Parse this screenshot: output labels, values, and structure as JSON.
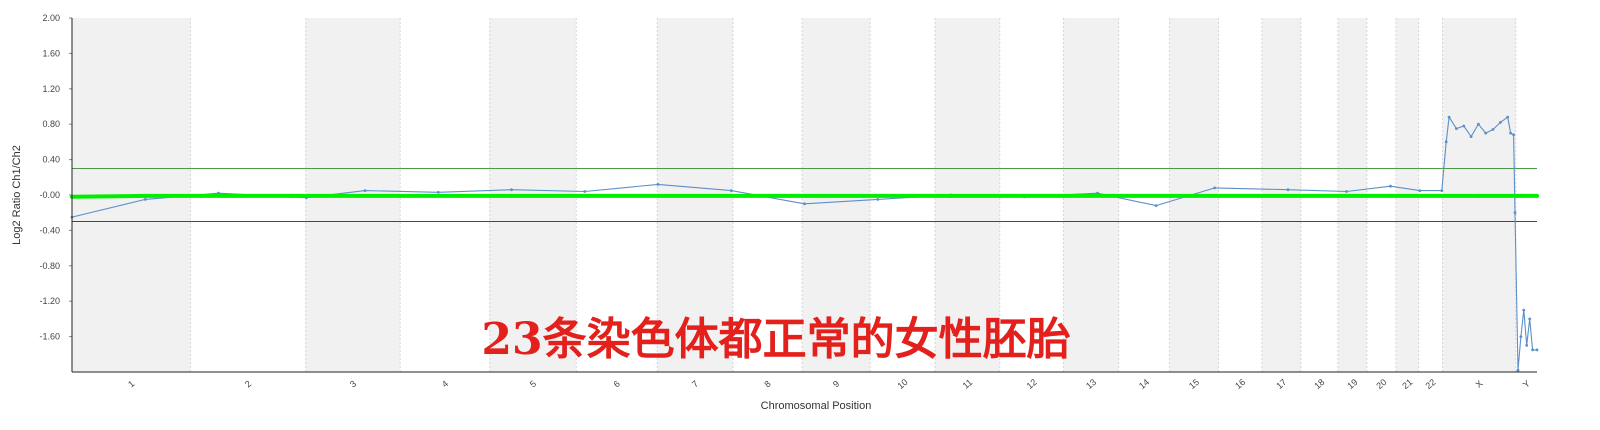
{
  "chart_data": {
    "type": "line",
    "title": "",
    "xlabel": "Chromosomal Position",
    "ylabel": "Log2 Ratio Ch1/Ch2",
    "ylim": [
      -2.0,
      2.0
    ],
    "yticks": [
      {
        "value": 2.0,
        "label": "2.00"
      },
      {
        "value": 1.6,
        "label": "1.60"
      },
      {
        "value": 1.2,
        "label": "1.20"
      },
      {
        "value": 0.8,
        "label": "0.80"
      },
      {
        "value": 0.4,
        "label": "0.40"
      },
      {
        "value": 0.0,
        "label": "-0.00"
      },
      {
        "value": -0.4,
        "label": "-0.40"
      },
      {
        "value": -0.8,
        "label": "-0.80"
      },
      {
        "value": -1.2,
        "label": "-1.20"
      },
      {
        "value": -1.6,
        "label": "-1.60"
      }
    ],
    "thresholds": [
      {
        "name": "upper",
        "value": 0.3,
        "color": "#4a9a4a"
      },
      {
        "name": "lower",
        "value": -0.3,
        "color": "#8b2a2a"
      }
    ],
    "chromosomes": [
      {
        "label": "1",
        "span": [
          0.0,
          0.0808
        ],
        "shaded": true
      },
      {
        "label": "2",
        "span": [
          0.0808,
          0.1596
        ],
        "shaded": false
      },
      {
        "label": "3",
        "span": [
          0.1596,
          0.224
        ],
        "shaded": true
      },
      {
        "label": "4",
        "span": [
          0.224,
          0.2852
        ],
        "shaded": false
      },
      {
        "label": "5",
        "span": [
          0.2852,
          0.3442
        ],
        "shaded": true
      },
      {
        "label": "6",
        "span": [
          0.3442,
          0.3995
        ],
        "shaded": false
      },
      {
        "label": "7",
        "span": [
          0.3995,
          0.4512
        ],
        "shaded": true
      },
      {
        "label": "8",
        "span": [
          0.4512,
          0.4983
        ],
        "shaded": false
      },
      {
        "label": "9",
        "span": [
          0.4983,
          0.5448
        ],
        "shaded": true
      },
      {
        "label": "10",
        "span": [
          0.5448,
          0.5891
        ],
        "shaded": false
      },
      {
        "label": "11",
        "span": [
          0.5891,
          0.6333
        ],
        "shaded": true
      },
      {
        "label": "12",
        "span": [
          0.6333,
          0.6768
        ],
        "shaded": false
      },
      {
        "label": "13",
        "span": [
          0.6768,
          0.7144
        ],
        "shaded": true
      },
      {
        "label": "14",
        "span": [
          0.7144,
          0.7492
        ],
        "shaded": false
      },
      {
        "label": "15",
        "span": [
          0.7492,
          0.7826
        ],
        "shaded": true
      },
      {
        "label": "16",
        "span": [
          0.7826,
          0.8122
        ],
        "shaded": false
      },
      {
        "label": "17",
        "span": [
          0.8122,
          0.8388
        ],
        "shaded": true
      },
      {
        "label": "18",
        "span": [
          0.8388,
          0.8641
        ],
        "shaded": false
      },
      {
        "label": "19",
        "span": [
          0.8641,
          0.8839
        ],
        "shaded": true
      },
      {
        "label": "20",
        "span": [
          0.8839,
          0.9037
        ],
        "shaded": false
      },
      {
        "label": "21",
        "span": [
          0.9037,
          0.9192
        ],
        "shaded": true
      },
      {
        "label": "22",
        "span": [
          0.9192,
          0.9355
        ],
        "shaded": false
      },
      {
        "label": "X",
        "span": [
          0.9355,
          0.9855
        ],
        "shaded": true
      },
      {
        "label": "Y",
        "span": [
          0.9855,
          1.0
        ],
        "shaded": false
      }
    ],
    "series": [
      {
        "color": "#00ee00",
        "values": [
          [
            0.0,
            -0.02
          ],
          [
            0.05,
            -0.01
          ],
          [
            0.15,
            -0.01
          ],
          [
            0.3,
            -0.01
          ],
          [
            0.45,
            -0.01
          ],
          [
            0.6,
            -0.01
          ],
          [
            0.75,
            -0.01
          ],
          [
            0.9,
            -0.01
          ],
          [
            0.96,
            -0.01
          ],
          [
            0.99,
            -0.01
          ],
          [
            1.0,
            -0.01
          ]
        ]
      },
      {
        "color": "#5b8fc9",
        "values": [
          [
            0.0,
            -0.25
          ],
          [
            0.05,
            -0.05
          ],
          [
            0.1,
            0.02
          ],
          [
            0.16,
            -0.03
          ],
          [
            0.2,
            0.05
          ],
          [
            0.25,
            0.03
          ],
          [
            0.3,
            0.06
          ],
          [
            0.35,
            0.04
          ],
          [
            0.4,
            0.12
          ],
          [
            0.45,
            0.05
          ],
          [
            0.5,
            -0.1
          ],
          [
            0.55,
            -0.05
          ],
          [
            0.6,
            0.0
          ],
          [
            0.65,
            -0.02
          ],
          [
            0.7,
            0.02
          ],
          [
            0.74,
            -0.12
          ],
          [
            0.78,
            0.08
          ],
          [
            0.83,
            0.06
          ],
          [
            0.87,
            0.04
          ],
          [
            0.9,
            0.1
          ],
          [
            0.92,
            0.05
          ],
          [
            0.935,
            0.05
          ],
          [
            0.938,
            0.6
          ],
          [
            0.94,
            0.88
          ],
          [
            0.945,
            0.75
          ],
          [
            0.95,
            0.78
          ],
          [
            0.955,
            0.66
          ],
          [
            0.96,
            0.8
          ],
          [
            0.965,
            0.7
          ],
          [
            0.97,
            0.74
          ],
          [
            0.975,
            0.82
          ],
          [
            0.98,
            0.88
          ],
          [
            0.982,
            0.7
          ],
          [
            0.984,
            0.68
          ],
          [
            0.985,
            -0.2
          ],
          [
            0.987,
            -1.98
          ],
          [
            0.989,
            -1.6
          ],
          [
            0.991,
            -1.3
          ],
          [
            0.993,
            -1.7
          ],
          [
            0.995,
            -1.4
          ],
          [
            0.997,
            -1.75
          ],
          [
            1.0,
            -1.75
          ]
        ]
      }
    ],
    "annotation": "23条染色体都正常的女性胚胎"
  }
}
